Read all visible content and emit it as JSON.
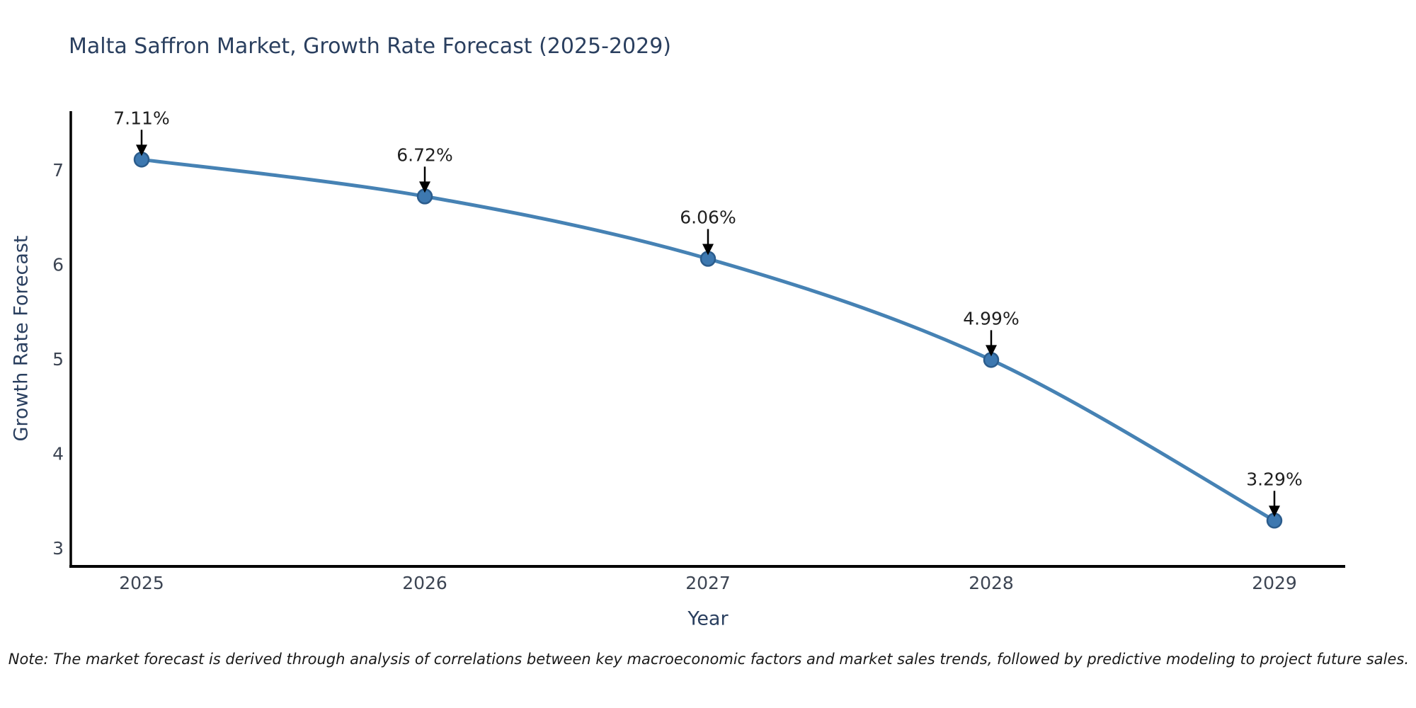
{
  "chart_data": {
    "type": "line",
    "title": "Malta Saffron Market, Growth Rate Forecast (2025-2029)",
    "xlabel": "Year",
    "ylabel": "Growth Rate Forecast",
    "x": [
      2025,
      2026,
      2027,
      2028,
      2029
    ],
    "series": [
      {
        "name": "Growth Rate Forecast",
        "values": [
          7.11,
          6.72,
          6.06,
          4.99,
          3.29
        ]
      }
    ],
    "point_labels": [
      "7.11%",
      "6.72%",
      "6.06%",
      "4.99%",
      "3.29%"
    ],
    "x_tick_labels": [
      "2025",
      "2026",
      "2027",
      "2028",
      "2029"
    ],
    "y_ticks": [
      3,
      4,
      5,
      6,
      7
    ],
    "xlim": [
      2024.74,
      2029.25
    ],
    "ylim": [
      2.8,
      7.62
    ],
    "grid": false,
    "legend_position": "none",
    "line_shape": "spline",
    "marker": "circle",
    "annotation_arrows": true,
    "note": "Note: The market forecast is derived through analysis of correlations between key macroeconomic factors and market sales trends, followed by predictive modeling to project future sales.",
    "colors": {
      "line": "#4682b4",
      "marker": "#3d78b0",
      "marker_edge": "#2b5c8c",
      "spine": "#000000",
      "arrow": "#000000",
      "title_text": "#2a3f5f",
      "axis_label_text": "#2a3f5f",
      "tick_text": "#3d4553",
      "annotation_text": "#1f1f1f",
      "note_text": "#1a1a1a",
      "background": "#ffffff"
    }
  }
}
